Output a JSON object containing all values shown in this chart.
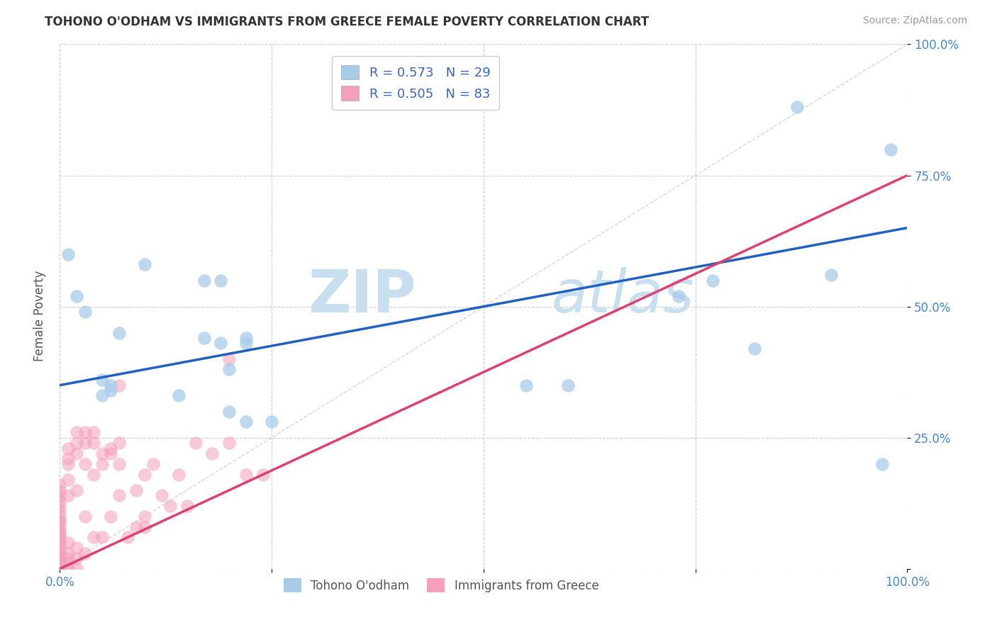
{
  "title": "TOHONO O'ODHAM VS IMMIGRANTS FROM GREECE FEMALE POVERTY CORRELATION CHART",
  "source": "Source: ZipAtlas.com",
  "ylabel_label": "Female Poverty",
  "xlim": [
    0,
    1
  ],
  "ylim": [
    0,
    1
  ],
  "xticks": [
    0,
    0.25,
    0.5,
    0.75,
    1.0
  ],
  "yticks": [
    0,
    0.25,
    0.5,
    0.75,
    1.0
  ],
  "xticklabels": [
    "0.0%",
    "",
    "",
    "",
    "100.0%"
  ],
  "yticklabels": [
    "",
    "25.0%",
    "50.0%",
    "75.0%",
    "100.0%"
  ],
  "legend1_label": "R = 0.573   N = 29",
  "legend2_label": "R = 0.505   N = 83",
  "group1_color": "#a8cce8",
  "group2_color": "#f4a0b8",
  "line1_color": "#2060c0",
  "line2_color": "#e04070",
  "diagonal_color": "#cccccc",
  "watermark_zip": "ZIP",
  "watermark_atlas": "atlas",
  "watermark_color": "#c8dff0",
  "background_color": "#ffffff",
  "grid_color": "#cccccc",
  "title_color": "#333333",
  "axis_label_color": "#555555",
  "tick_color": "#4488cc",
  "legend_text_color": "#3366cc",
  "bottom_label1": "Tohono O'odham",
  "bottom_label2": "Immigrants from Greece",
  "group1_x": [
    0.01,
    0.02,
    0.03,
    0.05,
    0.05,
    0.06,
    0.06,
    0.07,
    0.1,
    0.14,
    0.17,
    0.19,
    0.2,
    0.22,
    0.25,
    0.17,
    0.2,
    0.22,
    0.55,
    0.6,
    0.73,
    0.77,
    0.82,
    0.87,
    0.91,
    0.97,
    0.98,
    0.19,
    0.22
  ],
  "group1_y": [
    0.6,
    0.52,
    0.49,
    0.36,
    0.33,
    0.35,
    0.34,
    0.45,
    0.58,
    0.33,
    0.44,
    0.55,
    0.38,
    0.44,
    0.28,
    0.55,
    0.3,
    0.43,
    0.35,
    0.35,
    0.52,
    0.55,
    0.42,
    0.88,
    0.56,
    0.2,
    0.8,
    0.43,
    0.28
  ],
  "group2_x": [
    0.0,
    0.0,
    0.0,
    0.0,
    0.0,
    0.0,
    0.0,
    0.0,
    0.0,
    0.0,
    0.0,
    0.0,
    0.0,
    0.0,
    0.0,
    0.0,
    0.0,
    0.0,
    0.0,
    0.0,
    0.0,
    0.0,
    0.0,
    0.0,
    0.0,
    0.0,
    0.0,
    0.0,
    0.0,
    0.0,
    0.01,
    0.01,
    0.01,
    0.01,
    0.01,
    0.01,
    0.01,
    0.01,
    0.01,
    0.01,
    0.02,
    0.02,
    0.02,
    0.02,
    0.02,
    0.02,
    0.02,
    0.03,
    0.03,
    0.03,
    0.03,
    0.03,
    0.04,
    0.04,
    0.04,
    0.04,
    0.05,
    0.05,
    0.05,
    0.06,
    0.06,
    0.06,
    0.07,
    0.07,
    0.07,
    0.08,
    0.09,
    0.09,
    0.1,
    0.1,
    0.11,
    0.12,
    0.13,
    0.14,
    0.15,
    0.16,
    0.18,
    0.2,
    0.22,
    0.24,
    0.2,
    0.07,
    0.1
  ],
  "group2_y": [
    0.0,
    0.0,
    0.0,
    0.0,
    0.0,
    0.0,
    0.01,
    0.01,
    0.01,
    0.02,
    0.02,
    0.03,
    0.03,
    0.04,
    0.05,
    0.05,
    0.06,
    0.06,
    0.07,
    0.07,
    0.08,
    0.09,
    0.09,
    0.1,
    0.11,
    0.12,
    0.13,
    0.14,
    0.15,
    0.16,
    0.0,
    0.01,
    0.02,
    0.03,
    0.05,
    0.14,
    0.17,
    0.2,
    0.21,
    0.23,
    0.0,
    0.02,
    0.04,
    0.15,
    0.22,
    0.24,
    0.26,
    0.03,
    0.1,
    0.2,
    0.24,
    0.26,
    0.06,
    0.18,
    0.24,
    0.26,
    0.06,
    0.2,
    0.22,
    0.1,
    0.22,
    0.23,
    0.14,
    0.2,
    0.24,
    0.06,
    0.08,
    0.15,
    0.1,
    0.18,
    0.2,
    0.14,
    0.12,
    0.18,
    0.12,
    0.24,
    0.22,
    0.24,
    0.18,
    0.18,
    0.4,
    0.35,
    0.08
  ],
  "line1_intercept": 0.35,
  "line1_slope": 0.3,
  "line2_intercept": 0.0,
  "line2_slope": 0.75
}
